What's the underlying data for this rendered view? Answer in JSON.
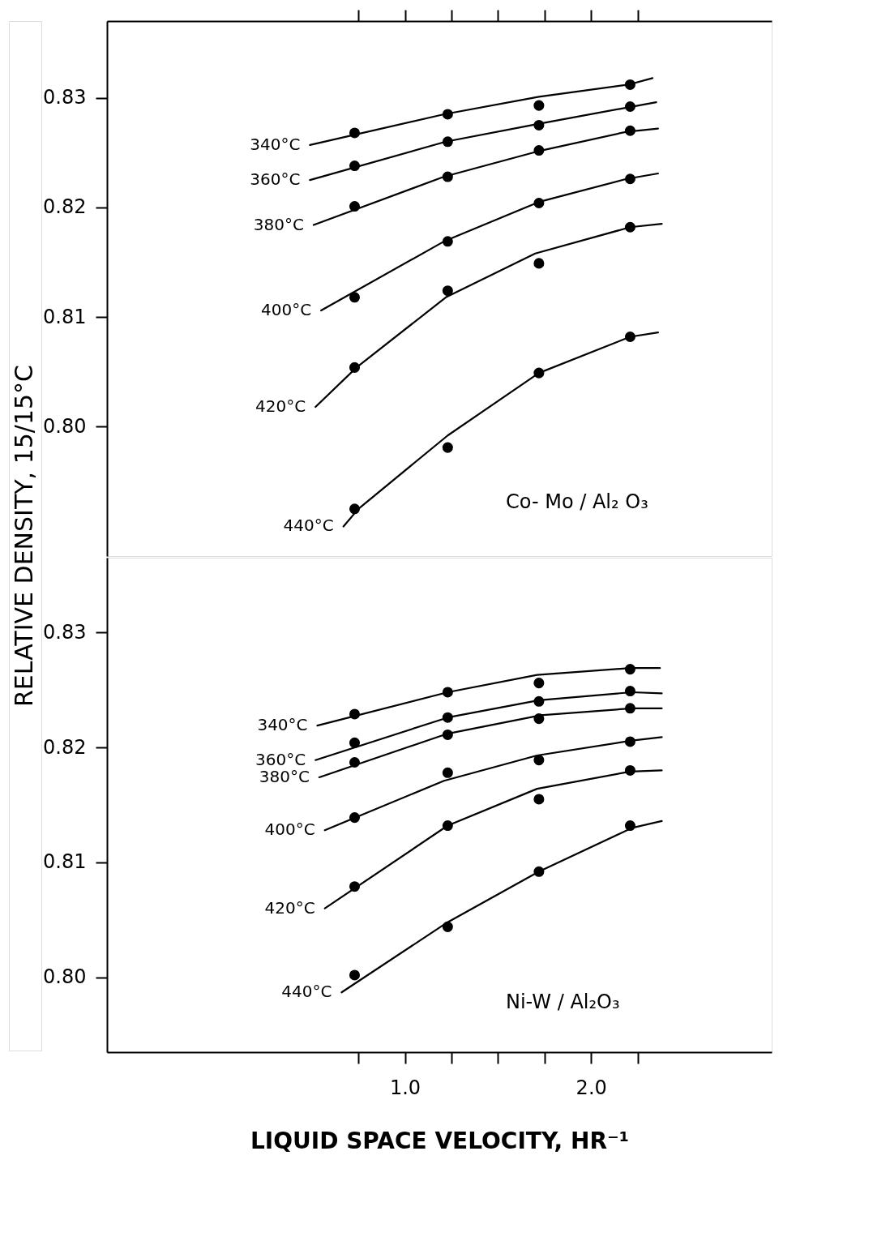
{
  "chart_data": [
    {
      "type": "line",
      "ylabel": "RELATIVE DENSITY, 15/15°C",
      "annotations": [
        "Co- Mo / Al₂ O₃"
      ],
      "xlim": [
        -0.6,
        2.97
      ],
      "ylim": [
        0.7882,
        0.837
      ],
      "xticks": [
        {
          "value": 0.75,
          "label": null
        },
        {
          "value": 1.0,
          "label": null
        },
        {
          "value": 1.25,
          "label": null
        },
        {
          "value": 1.5,
          "label": null
        },
        {
          "value": 1.75,
          "label": null
        },
        {
          "value": 2.0,
          "label": null
        },
        {
          "value": 2.25,
          "label": null
        }
      ],
      "yticks": [
        {
          "value": 0.8,
          "label": "0.80"
        },
        0.81,
        0.82,
        0.83
      ],
      "tick_labels": "y",
      "grid": false,
      "series": [
        {
          "name": "340°C",
          "color": "#000000",
          "x": [
            0.49,
            1.21,
            1.72,
            2.2,
            2.33
          ],
          "values": [
            0.8257,
            0.8285,
            0.8301,
            0.8312,
            0.8318
          ]
        },
        {
          "name": "360°C",
          "color": "#000000",
          "x": [
            0.49,
            1.22,
            1.71,
            2.19,
            2.35
          ],
          "values": [
            0.8225,
            0.826,
            0.8276,
            0.8291,
            0.8296
          ]
        },
        {
          "name": "380°C",
          "color": "#000000",
          "x": [
            0.51,
            1.21,
            1.71,
            2.19,
            2.36
          ],
          "values": [
            0.8184,
            0.8228,
            0.8251,
            0.8269,
            0.8272
          ]
        },
        {
          "name": "400°C",
          "color": "#000000",
          "x": [
            0.55,
            1.21,
            1.72,
            2.19,
            2.36
          ],
          "values": [
            0.8106,
            0.8169,
            0.8205,
            0.8226,
            0.8231
          ]
        },
        {
          "name": "420°C",
          "color": "#000000",
          "x": [
            0.52,
            0.74,
            1.22,
            1.7,
            2.21,
            2.38
          ],
          "values": [
            0.8018,
            0.8054,
            0.8118,
            0.8158,
            0.8182,
            0.8185
          ]
        },
        {
          "name": "440°C",
          "color": "#000000",
          "x": [
            0.67,
            0.75,
            1.23,
            1.72,
            2.21,
            2.36
          ],
          "values": [
            0.7909,
            0.7925,
            0.7992,
            0.8049,
            0.8082,
            0.8086
          ]
        },
        {
          "type": "scatter",
          "marker": "circle",
          "color": "#000000",
          "x": [
            0.73,
            1.23,
            1.72,
            2.21
          ],
          "values": [
            0.8268,
            0.8285,
            0.8293,
            0.8312
          ]
        },
        {
          "type": "scatter",
          "marker": "circle",
          "color": "#000000",
          "x": [
            0.73,
            1.23,
            1.72,
            2.21
          ],
          "values": [
            0.8238,
            0.826,
            0.8275,
            0.8292
          ]
        },
        {
          "type": "scatter",
          "marker": "circle",
          "color": "#000000",
          "x": [
            0.73,
            1.23,
            1.72,
            2.21
          ],
          "values": [
            0.8201,
            0.8228,
            0.8252,
            0.827
          ]
        },
        {
          "type": "scatter",
          "marker": "circle",
          "color": "#000000",
          "x": [
            0.73,
            1.23,
            1.72,
            2.21
          ],
          "values": [
            0.8118,
            0.8169,
            0.8204,
            0.8226
          ]
        },
        {
          "type": "scatter",
          "marker": "circle",
          "color": "#000000",
          "x": [
            0.73,
            1.23,
            1.72,
            2.21
          ],
          "values": [
            0.8054,
            0.8124,
            0.8149,
            0.8182
          ]
        },
        {
          "type": "scatter",
          "marker": "circle",
          "color": "#000000",
          "x": [
            0.73,
            1.23,
            1.72,
            2.21
          ],
          "values": [
            0.7925,
            0.7981,
            0.8049,
            0.8082
          ]
        }
      ]
    },
    {
      "type": "line",
      "xlabel": "LIQUID SPACE VELOCITY, HR⁻¹",
      "annotations": [
        "Ni-W / Al₂O₃"
      ],
      "xlim": [
        -0.6,
        2.97
      ],
      "ylim": [
        0.7935,
        0.8365
      ],
      "xticks": [
        {
          "value": 0.75,
          "label": null
        },
        {
          "value": 1.0,
          "label": "1.0"
        },
        {
          "value": 1.25,
          "label": null
        },
        {
          "value": 1.5,
          "label": null
        },
        {
          "value": 1.75,
          "label": null
        },
        {
          "value": 2.0,
          "label": "2.0"
        },
        {
          "value": 2.25,
          "label": null
        }
      ],
      "yticks": [
        {
          "value": 0.8,
          "label": "0.80"
        },
        0.81,
        0.82,
        0.83
      ],
      "grid": false,
      "series": [
        {
          "name": "340°C",
          "color": "#000000",
          "x": [
            0.53,
            1.23,
            1.71,
            2.21,
            2.37
          ],
          "values": [
            0.8219,
            0.8248,
            0.8263,
            0.8269,
            0.8269
          ]
        },
        {
          "name": "360°C",
          "color": "#000000",
          "x": [
            0.52,
            1.23,
            1.72,
            2.22,
            2.38
          ],
          "values": [
            0.8189,
            0.8226,
            0.8241,
            0.8248,
            0.8247
          ]
        },
        {
          "name": "380°C",
          "color": "#000000",
          "x": [
            0.54,
            1.23,
            1.73,
            2.22,
            2.38
          ],
          "values": [
            0.8174,
            0.8212,
            0.8228,
            0.8234,
            0.8234
          ]
        },
        {
          "name": "400°C",
          "color": "#000000",
          "x": [
            0.57,
            1.21,
            1.71,
            2.22,
            2.38
          ],
          "values": [
            0.8128,
            0.8171,
            0.8193,
            0.8206,
            0.8209
          ]
        },
        {
          "name": "420°C",
          "color": "#000000",
          "x": [
            0.57,
            1.23,
            1.71,
            2.21,
            2.38
          ],
          "values": [
            0.806,
            0.8132,
            0.8164,
            0.8179,
            0.818
          ]
        },
        {
          "name": "440°C",
          "color": "#000000",
          "x": [
            0.66,
            1.23,
            1.72,
            2.22,
            2.38
          ],
          "values": [
            0.7987,
            0.8048,
            0.8092,
            0.813,
            0.8136
          ]
        },
        {
          "type": "scatter",
          "marker": "circle",
          "color": "#000000",
          "x": [
            0.73,
            1.23,
            1.72,
            2.21
          ],
          "values": [
            0.8229,
            0.8248,
            0.8256,
            0.8268
          ]
        },
        {
          "type": "scatter",
          "marker": "circle",
          "color": "#000000",
          "x": [
            0.73,
            1.23,
            1.72,
            2.21
          ],
          "values": [
            0.8204,
            0.8226,
            0.824,
            0.8249
          ]
        },
        {
          "type": "scatter",
          "marker": "circle",
          "color": "#000000",
          "x": [
            0.73,
            1.23,
            1.72,
            2.21
          ],
          "values": [
            0.8187,
            0.8211,
            0.8225,
            0.8234
          ]
        },
        {
          "type": "scatter",
          "marker": "circle",
          "color": "#000000",
          "x": [
            0.73,
            1.23,
            1.72,
            2.21
          ],
          "values": [
            0.8139,
            0.8178,
            0.8189,
            0.8205
          ]
        },
        {
          "type": "scatter",
          "marker": "circle",
          "color": "#000000",
          "x": [
            0.73,
            1.23,
            1.72,
            2.21
          ],
          "values": [
            0.8079,
            0.8132,
            0.8155,
            0.818
          ]
        },
        {
          "type": "scatter",
          "marker": "circle",
          "color": "#000000",
          "x": [
            0.73,
            1.23,
            1.72,
            2.21
          ],
          "values": [
            0.8002,
            0.8044,
            0.8092,
            0.8132
          ]
        }
      ]
    }
  ]
}
